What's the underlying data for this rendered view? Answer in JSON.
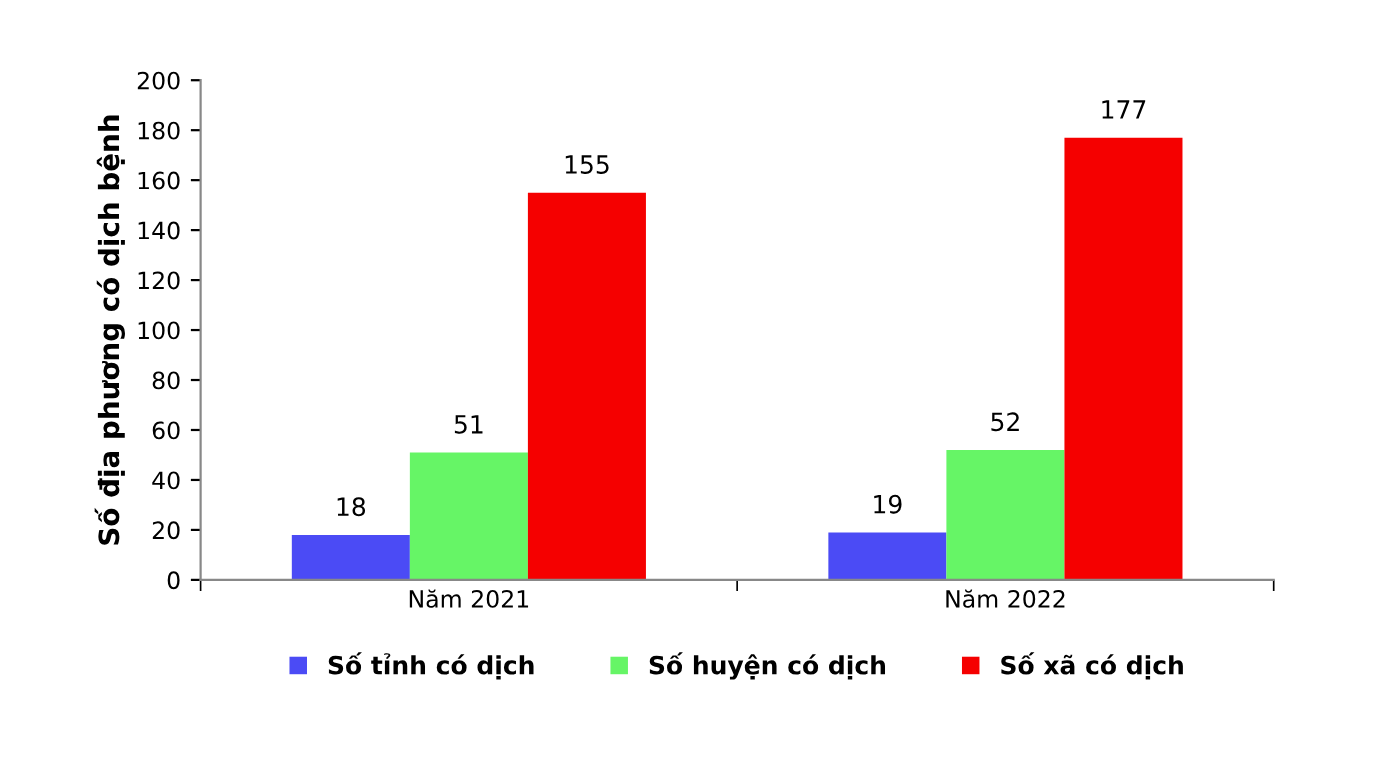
{
  "chart_data": {
    "type": "bar",
    "ylabel": "Số địa phương có dịch bệnh",
    "categories": [
      "Năm 2021",
      "Năm 2022"
    ],
    "series": [
      {
        "name": "Số tỉnh có dịch",
        "color": "#4b4bf5",
        "values": [
          18,
          19
        ]
      },
      {
        "name": "Số huyện có dịch",
        "color": "#66f566",
        "values": [
          51,
          52
        ]
      },
      {
        "name": "Số xã có dịch",
        "color": "#f50000",
        "values": [
          155,
          177
        ]
      }
    ],
    "ylim": [
      0,
      200
    ],
    "yticks": [
      0,
      20,
      40,
      60,
      80,
      100,
      120,
      140,
      160,
      180,
      200
    ],
    "data_labels": true,
    "grid": false,
    "legend": "bottom"
  }
}
